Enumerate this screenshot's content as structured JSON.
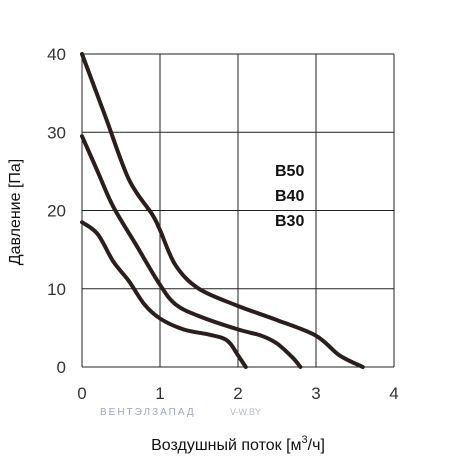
{
  "chart_data": {
    "type": "line",
    "xlabel": "Воздушный поток [м³/ч]",
    "xlabel_prefix": "Воздушный поток [м",
    "xlabel_sup": "3",
    "xlabel_suffix": "/ч]",
    "ylabel": "Давление [Па]",
    "xlim": [
      0,
      4
    ],
    "ylim": [
      0,
      40
    ],
    "x_ticks": [
      0,
      1,
      2,
      3,
      4
    ],
    "y_ticks": [
      0,
      10,
      20,
      30,
      40
    ],
    "x_tick_labels": [
      "0",
      "1",
      "2",
      "3",
      "4"
    ],
    "y_tick_labels": [
      "0",
      "10",
      "20",
      "30",
      "40"
    ],
    "grid": true,
    "series": [
      {
        "name": "B50",
        "x": [
          0,
          0.3,
          0.6,
          0.9,
          1.0,
          1.2,
          1.5,
          2.0,
          2.5,
          3.0,
          3.3,
          3.6
        ],
        "y": [
          40,
          32,
          24,
          19.5,
          17.5,
          13,
          10,
          7.8,
          6,
          4,
          1.5,
          0
        ]
      },
      {
        "name": "B40",
        "x": [
          0,
          0.2,
          0.4,
          0.7,
          1.0,
          1.2,
          1.5,
          2.0,
          2.3,
          2.5,
          2.7,
          2.8
        ],
        "y": [
          29.5,
          25,
          20.5,
          15.5,
          10.5,
          8,
          6.5,
          4.8,
          4,
          3,
          1.2,
          0
        ]
      },
      {
        "name": "B30",
        "x": [
          0,
          0.2,
          0.4,
          0.6,
          0.8,
          1.0,
          1.3,
          1.6,
          1.8,
          1.9,
          2.0,
          2.1
        ],
        "y": [
          18.5,
          17,
          13.5,
          11,
          8,
          6.2,
          4.8,
          4.2,
          3.7,
          3,
          1.5,
          0
        ]
      }
    ],
    "line_color": "#2b1f1d",
    "grid_color": "#222222"
  },
  "watermark": {
    "brand": "ВЕНТЭЛЗАПАД",
    "site": "V-W.BY"
  }
}
